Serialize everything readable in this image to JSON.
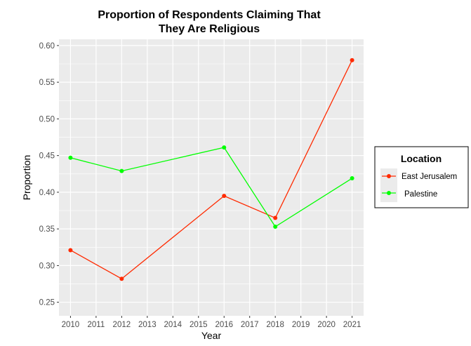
{
  "chart_data": {
    "type": "line",
    "title": [
      "Proportion of Respondents Claiming That",
      "They Are Religious"
    ],
    "xlabel": "Year",
    "ylabel": "Proportion",
    "x_ticks": [
      "2010",
      "2011",
      "2012",
      "2013",
      "2014",
      "2015",
      "2016",
      "2017",
      "2018",
      "2019",
      "2020",
      "2021"
    ],
    "y_ticks": [
      "0.25",
      "0.30",
      "0.35",
      "0.40",
      "0.45",
      "0.50",
      "0.55",
      "0.60"
    ],
    "xlim": [
      2009.55,
      2021.45
    ],
    "ylim": [
      0.2315,
      0.6085
    ],
    "grid": true,
    "legend": {
      "title": "Location",
      "position": "right"
    },
    "series": [
      {
        "name": "East Jerusalem",
        "color": "#ff2a00",
        "x": [
          2010,
          2012,
          2016,
          2018,
          2021
        ],
        "y": [
          0.321,
          0.282,
          0.395,
          0.365,
          0.58
        ]
      },
      {
        "name": "Palestine",
        "color": "#00ff00",
        "x": [
          2010,
          2012,
          2016,
          2018,
          2021
        ],
        "y": [
          0.447,
          0.429,
          0.461,
          0.353,
          0.419
        ]
      }
    ]
  }
}
